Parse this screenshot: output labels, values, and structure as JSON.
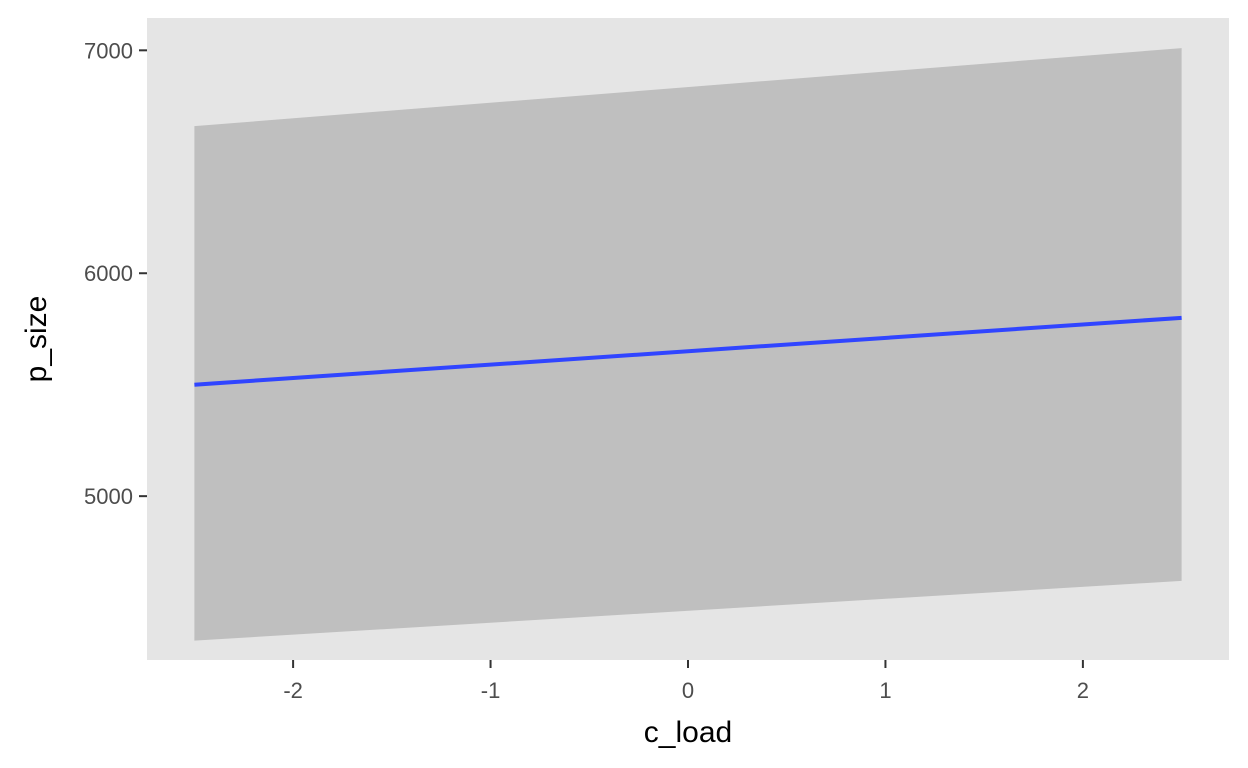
{
  "chart_data": {
    "type": "line",
    "xlabel": "c_load",
    "ylabel": "p_size",
    "xlim": [
      -2.74,
      2.74
    ],
    "ylim": [
      4265,
      7145
    ],
    "x_ticks": [
      -2,
      -1,
      0,
      1,
      2
    ],
    "x_tick_labels": [
      "-2",
      "-1",
      "0",
      "1",
      "2"
    ],
    "y_ticks": [
      5000,
      6000,
      7000
    ],
    "y_tick_labels": [
      "5000",
      "6000",
      "7000"
    ],
    "grid": false,
    "legend": "none",
    "series": [
      {
        "x": [
          -2.5,
          2.5
        ],
        "y": [
          5500,
          5800
        ],
        "ribbon_lower": [
          4352,
          4620
        ],
        "ribbon_upper": [
          6660,
          7010
        ]
      }
    ],
    "colors": {
      "panel_background": "#e5e5e5",
      "ribbon": "#bfbfbf",
      "line": "#3045ff",
      "tick": "#333333"
    }
  }
}
